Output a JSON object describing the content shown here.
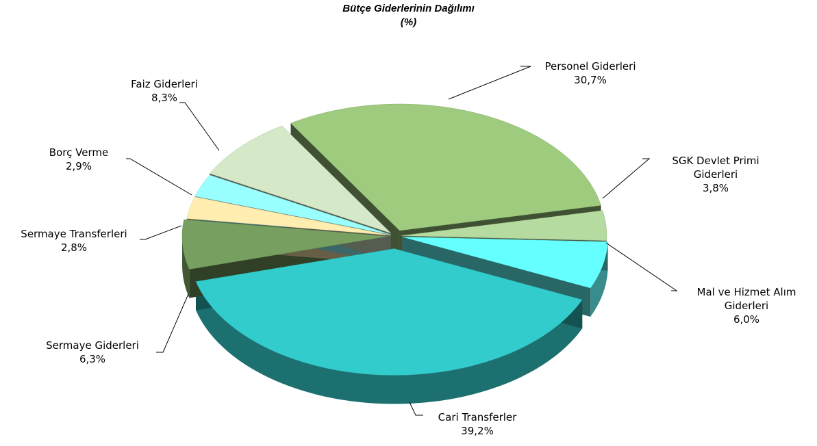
{
  "chart_data": {
    "type": "pie",
    "title": "Bütçe Giderlerinin Dağılımı",
    "subtitle": "(%)",
    "categories": [
      "Personel Giderleri",
      "SGK Devlet Primi Giderleri",
      "Mal ve Hizmet Alım Giderleri",
      "Cari Transferler",
      "Sermaye Giderleri",
      "Sermaye Transferleri",
      "Borç Verme",
      "Faiz Giderleri"
    ],
    "values": [
      30.7,
      3.8,
      6.0,
      39.2,
      6.3,
      2.8,
      2.9,
      8.3
    ],
    "value_labels": [
      "30,7%",
      "3,8%",
      "6,0%",
      "39,2%",
      "6,3%",
      "2,8%",
      "2,9%",
      "8,3%"
    ],
    "colors": [
      "#9fcb7f",
      "#b5dba0",
      "#66ffff",
      "#33cccc",
      "#77a060",
      "#ffeeb0",
      "#99ffff",
      "#d5e8c8"
    ]
  }
}
